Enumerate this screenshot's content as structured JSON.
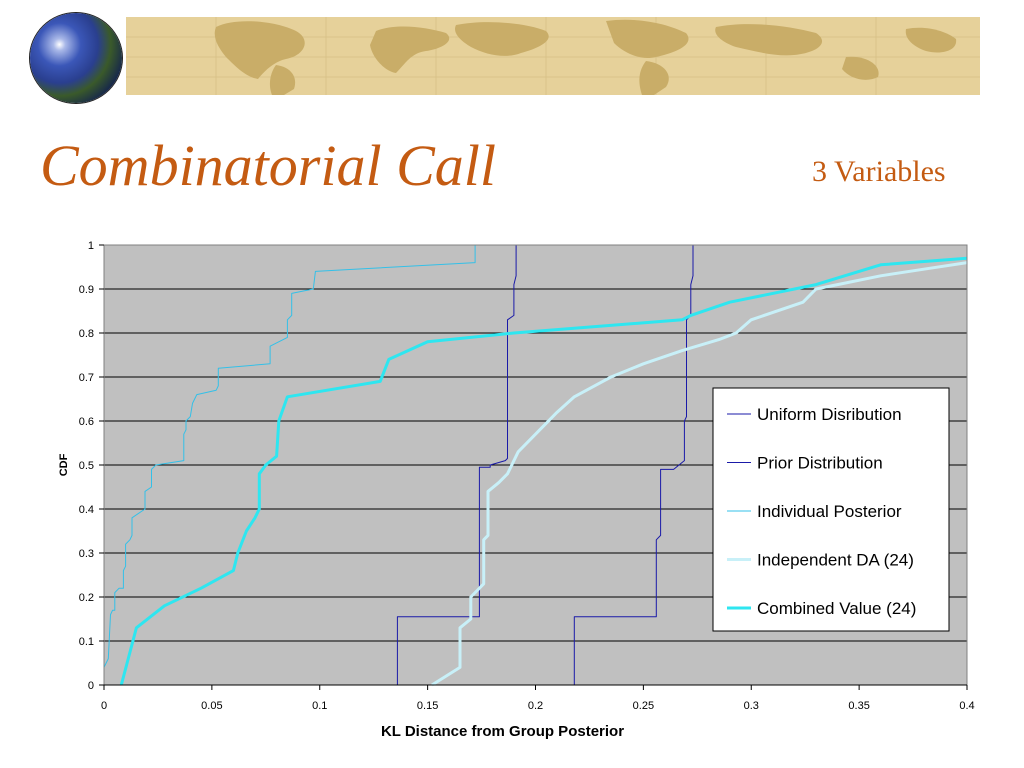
{
  "slide": {
    "title": "Combinatorial Call",
    "subtitle": "3 Variables"
  },
  "chart_data": {
    "type": "line",
    "xlabel": "KL Distance from Group Posterior",
    "ylabel": "CDF",
    "xlim": [
      0,
      0.4
    ],
    "ylim": [
      0,
      1
    ],
    "x_ticks": [
      "0",
      "0.05",
      "0.1",
      "0.15",
      "0.2",
      "0.25",
      "0.3",
      "0.35",
      "0.4"
    ],
    "y_ticks": [
      "0",
      "0.1",
      "0.2",
      "0.3",
      "0.4",
      "0.5",
      "0.6",
      "0.7",
      "0.8",
      "0.9",
      "1"
    ],
    "grid": "horizontal",
    "background": "#c0c0c0",
    "legend_position": "right",
    "series": [
      {
        "name": "Uniform Disribution",
        "color": "#1a1aa8",
        "width": 1,
        "points": [
          [
            0.136,
            0
          ],
          [
            0.136,
            0.155
          ],
          [
            0.174,
            0.155
          ],
          [
            0.174,
            0.495
          ],
          [
            0.179,
            0.495
          ],
          [
            0.179,
            0.5
          ],
          [
            0.186,
            0.51
          ],
          [
            0.187,
            0.515
          ],
          [
            0.187,
            0.83
          ],
          [
            0.19,
            0.84
          ],
          [
            0.19,
            0.91
          ],
          [
            0.191,
            0.93
          ],
          [
            0.191,
            1.0
          ]
        ]
      },
      {
        "name": "Prior Distribution",
        "color": "#1a1aa8",
        "width": 1,
        "points": [
          [
            0.218,
            0
          ],
          [
            0.218,
            0.155
          ],
          [
            0.256,
            0.155
          ],
          [
            0.256,
            0.33
          ],
          [
            0.258,
            0.34
          ],
          [
            0.258,
            0.49
          ],
          [
            0.264,
            0.49
          ],
          [
            0.269,
            0.51
          ],
          [
            0.269,
            0.6
          ],
          [
            0.27,
            0.61
          ],
          [
            0.27,
            0.83
          ],
          [
            0.272,
            0.84
          ],
          [
            0.272,
            0.91
          ],
          [
            0.273,
            0.93
          ],
          [
            0.273,
            1.0
          ]
        ]
      },
      {
        "name": "Individual Posterior",
        "color": "#33c0e8",
        "width": 1,
        "points": [
          [
            0.0,
            0.04
          ],
          [
            0.002,
            0.06
          ],
          [
            0.003,
            0.16
          ],
          [
            0.004,
            0.17
          ],
          [
            0.005,
            0.17
          ],
          [
            0.005,
            0.21
          ],
          [
            0.007,
            0.22
          ],
          [
            0.009,
            0.22
          ],
          [
            0.009,
            0.26
          ],
          [
            0.01,
            0.27
          ],
          [
            0.01,
            0.32
          ],
          [
            0.012,
            0.33
          ],
          [
            0.013,
            0.34
          ],
          [
            0.013,
            0.38
          ],
          [
            0.019,
            0.4
          ],
          [
            0.019,
            0.44
          ],
          [
            0.022,
            0.45
          ],
          [
            0.022,
            0.49
          ],
          [
            0.024,
            0.5
          ],
          [
            0.037,
            0.51
          ],
          [
            0.037,
            0.57
          ],
          [
            0.038,
            0.58
          ],
          [
            0.038,
            0.6
          ],
          [
            0.04,
            0.61
          ],
          [
            0.041,
            0.64
          ],
          [
            0.043,
            0.66
          ],
          [
            0.052,
            0.67
          ],
          [
            0.053,
            0.68
          ],
          [
            0.053,
            0.72
          ],
          [
            0.077,
            0.73
          ],
          [
            0.077,
            0.77
          ],
          [
            0.085,
            0.79
          ],
          [
            0.085,
            0.83
          ],
          [
            0.087,
            0.84
          ],
          [
            0.087,
            0.89
          ],
          [
            0.097,
            0.9
          ],
          [
            0.098,
            0.94
          ],
          [
            0.172,
            0.96
          ],
          [
            0.172,
            1.0
          ]
        ]
      },
      {
        "name": "Independent DA (24)",
        "color": "#c8f0f8",
        "width": 3,
        "points": [
          [
            0.152,
            0
          ],
          [
            0.165,
            0.04
          ],
          [
            0.165,
            0.13
          ],
          [
            0.17,
            0.15
          ],
          [
            0.17,
            0.2
          ],
          [
            0.176,
            0.23
          ],
          [
            0.176,
            0.33
          ],
          [
            0.178,
            0.34
          ],
          [
            0.178,
            0.44
          ],
          [
            0.183,
            0.46
          ],
          [
            0.187,
            0.48
          ],
          [
            0.192,
            0.53
          ],
          [
            0.2,
            0.57
          ],
          [
            0.21,
            0.62
          ],
          [
            0.218,
            0.655
          ],
          [
            0.235,
            0.7
          ],
          [
            0.25,
            0.73
          ],
          [
            0.268,
            0.76
          ],
          [
            0.285,
            0.785
          ],
          [
            0.293,
            0.8
          ],
          [
            0.3,
            0.83
          ],
          [
            0.324,
            0.87
          ],
          [
            0.33,
            0.9
          ],
          [
            0.34,
            0.91
          ],
          [
            0.36,
            0.93
          ],
          [
            0.38,
            0.945
          ],
          [
            0.4,
            0.96
          ]
        ]
      },
      {
        "name": "Combined Value (24)",
        "color": "#2ee6f0",
        "width": 3,
        "points": [
          [
            0.008,
            0
          ],
          [
            0.015,
            0.13
          ],
          [
            0.028,
            0.18
          ],
          [
            0.045,
            0.22
          ],
          [
            0.06,
            0.26
          ],
          [
            0.062,
            0.3
          ],
          [
            0.066,
            0.35
          ],
          [
            0.07,
            0.38
          ],
          [
            0.072,
            0.4
          ],
          [
            0.072,
            0.48
          ],
          [
            0.075,
            0.5
          ],
          [
            0.08,
            0.52
          ],
          [
            0.081,
            0.6
          ],
          [
            0.085,
            0.655
          ],
          [
            0.128,
            0.69
          ],
          [
            0.132,
            0.74
          ],
          [
            0.15,
            0.78
          ],
          [
            0.19,
            0.8
          ],
          [
            0.268,
            0.83
          ],
          [
            0.272,
            0.84
          ],
          [
            0.29,
            0.87
          ],
          [
            0.33,
            0.91
          ],
          [
            0.36,
            0.955
          ],
          [
            0.4,
            0.97
          ]
        ]
      }
    ]
  }
}
